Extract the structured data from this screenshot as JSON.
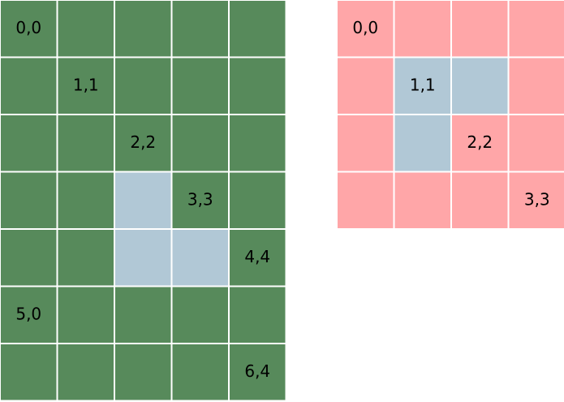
{
  "grids": [
    {
      "color": "#578a5b",
      "highlight_color": "#b1c8d6",
      "rows": [
        [
          "0,0",
          null,
          null,
          null,
          null
        ],
        [
          null,
          "1,1",
          null,
          null,
          null
        ],
        [
          null,
          null,
          "2,2",
          null,
          null
        ],
        [
          null,
          null,
          null,
          "3,3",
          null
        ],
        [
          null,
          null,
          null,
          null,
          "4,4"
        ],
        [
          "5,0",
          null,
          null,
          null,
          null
        ],
        [
          null,
          null,
          null,
          null,
          "6,4"
        ]
      ],
      "highlighted": [
        [
          false,
          false,
          false,
          false,
          false
        ],
        [
          false,
          false,
          false,
          false,
          false
        ],
        [
          false,
          false,
          false,
          false,
          false
        ],
        [
          false,
          false,
          true,
          false,
          false
        ],
        [
          false,
          false,
          true,
          true,
          false
        ],
        [
          false,
          false,
          false,
          false,
          false
        ],
        [
          false,
          false,
          false,
          false,
          false
        ]
      ]
    },
    {
      "color": "#ffa6a8",
      "highlight_color": "#b1c8d6",
      "rows": [
        [
          "0,0",
          null,
          null,
          null
        ],
        [
          null,
          "1,1",
          null,
          null
        ],
        [
          null,
          null,
          "2,2",
          null
        ],
        [
          null,
          null,
          null,
          "3,3"
        ]
      ],
      "highlighted": [
        [
          false,
          false,
          false,
          false
        ],
        [
          false,
          true,
          true,
          false
        ],
        [
          false,
          true,
          false,
          false
        ],
        [
          false,
          false,
          false,
          false
        ]
      ]
    }
  ]
}
